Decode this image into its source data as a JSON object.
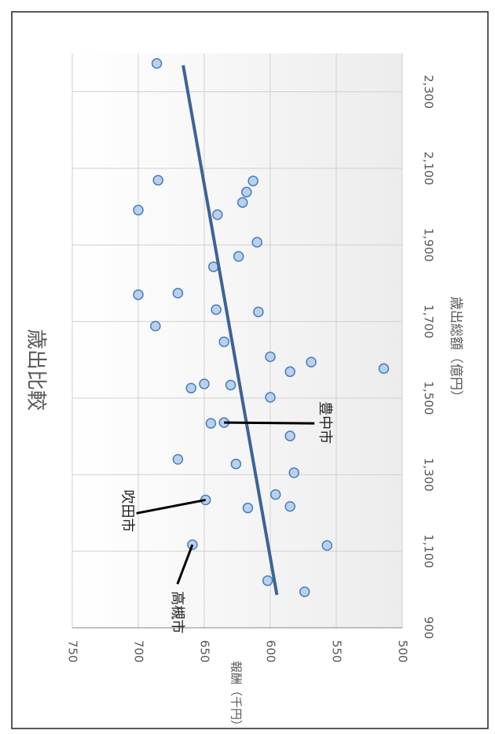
{
  "chart_data": {
    "type": "scatter",
    "title": "歳出比較",
    "x_label": "歳出総額（億円）",
    "y_label": "報酬（千円）",
    "xlim": [
      900,
      2400
    ],
    "xticks": [
      {
        "value": 900,
        "label": "900"
      },
      {
        "value": 1100,
        "label": "1,100"
      },
      {
        "value": 1300,
        "label": "1,300"
      },
      {
        "value": 1500,
        "label": "1,500"
      },
      {
        "value": 1700,
        "label": "1,700"
      },
      {
        "value": 1900,
        "label": "1,900"
      },
      {
        "value": 2100,
        "label": "2,100"
      },
      {
        "value": 2300,
        "label": "2,300"
      }
    ],
    "ylim": [
      500,
      750
    ],
    "yticks": [
      500,
      550,
      600,
      650,
      700,
      750
    ],
    "grid": true,
    "color": "#b9d1ee",
    "edge_color": "#4a7ebb",
    "x": [
      2374,
      2069,
      2067,
      2038,
      2011,
      1991,
      1979,
      1907,
      1870,
      1843,
      1770,
      1774,
      1731,
      1725,
      1688,
      1647,
      1608,
      1594,
      1569,
      1577,
      1537,
      1534,
      1526,
      1502,
      1434,
      1436,
      1401,
      1340,
      1328,
      1305,
      1234,
      1248,
      1213,
      1217,
      1117,
      1115,
      1023,
      994
    ],
    "values": [
      686,
      685,
      613,
      618,
      621,
      700,
      640,
      610,
      624,
      643,
      700,
      670,
      641,
      609,
      687,
      635,
      600,
      569,
      585,
      514,
      650,
      630,
      660,
      600,
      645,
      635,
      585,
      670,
      626,
      582,
      649,
      596,
      617,
      585,
      659,
      557,
      602,
      574
    ],
    "trend": {
      "color": "#3d6396",
      "x": [
        986,
        2369
      ],
      "values": [
        595,
        666
      ]
    },
    "annotations": [
      {
        "text": "豊中市",
        "x": 1436,
        "y": 635
      },
      {
        "text": "吹田市",
        "x": 1234,
        "y": 649
      },
      {
        "text": "高槻市",
        "x": 1117,
        "y": 659
      }
    ]
  }
}
